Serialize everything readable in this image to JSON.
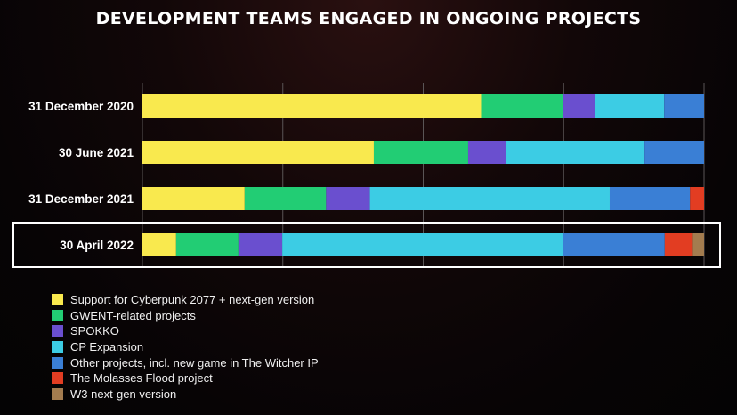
{
  "chart_data": {
    "type": "bar",
    "orientation": "horizontal",
    "stacked": true,
    "normalized_percent": true,
    "title": "DEVELOPMENT TEAMS ENGAGED IN ONGOING PROJECTS",
    "categories": [
      "31 December 2020",
      "30 June 2021",
      "31 December 2021",
      "30 April 2022"
    ],
    "highlighted_category": "30 April 2022",
    "xlim": [
      0,
      100
    ],
    "grid": true,
    "legend_position": "bottom-left",
    "series": [
      {
        "name": "Support for Cyberpunk 2077 + next-gen version",
        "color": "#f9e94e",
        "values": [
          60.3,
          41.2,
          18.2,
          6.0
        ]
      },
      {
        "name": "GWENT-related projects",
        "color": "#22cd74",
        "values": [
          14.6,
          16.8,
          14.5,
          11.1
        ]
      },
      {
        "name": "SPOKKO",
        "color": "#6a4fcf",
        "values": [
          5.7,
          6.8,
          7.8,
          7.8
        ]
      },
      {
        "name": "CP Expansion",
        "color": "#3ccce4",
        "values": [
          12.3,
          24.6,
          42.7,
          50.0
        ]
      },
      {
        "name": "Other projects, incl. new game in The Witcher IP",
        "color": "#3a7fd5",
        "values": [
          7.1,
          10.6,
          14.3,
          18.1
        ]
      },
      {
        "name": "The Molasses Flood project",
        "color": "#e23d22",
        "values": [
          0,
          0,
          2.5,
          5.0
        ]
      },
      {
        "name": "W3 next-gen version",
        "color": "#a37c4f",
        "values": [
          0,
          0,
          0,
          2.0
        ]
      }
    ]
  }
}
